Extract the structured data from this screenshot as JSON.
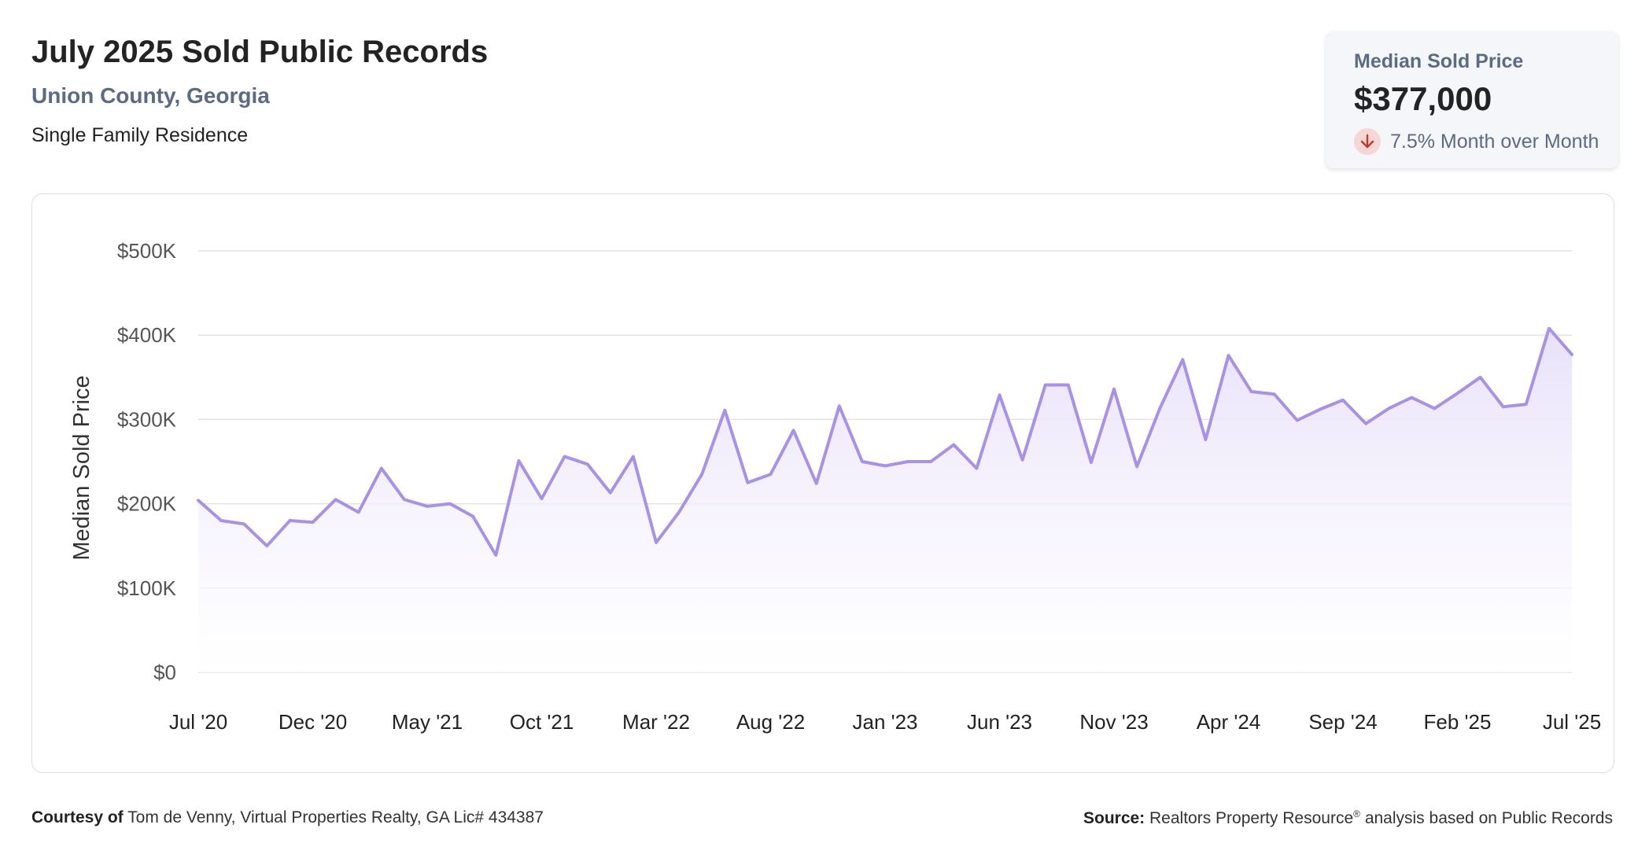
{
  "header": {
    "title": "July 2025 Sold Public Records",
    "location": "Union County, Georgia",
    "property_type": "Single Family Residence"
  },
  "stat": {
    "label": "Median Sold Price",
    "value": "$377,000",
    "change": "7.5% Month over Month",
    "direction_icon": "arrow-down-icon",
    "down_color": "#c0392b"
  },
  "footer": {
    "courtesy_label": "Courtesy of",
    "courtesy_text": "Tom de Venny, Virtual Properties Realty, GA Lic# 434387",
    "source_label": "Source:",
    "source_text_a": "Realtors Property Resource",
    "source_mark": "®",
    "source_text_b": "analysis based on Public Records"
  },
  "colors": {
    "line": "#a991e6",
    "fill": "#ece6fb",
    "grid": "#e3e3e3"
  },
  "chart_data": {
    "type": "area",
    "ylabel": "Median Sold Price",
    "ylim": [
      0,
      500000
    ],
    "yticks": [
      {
        "value": 500000,
        "label": "$500K"
      },
      {
        "value": 400000,
        "label": "$400K"
      },
      {
        "value": 300000,
        "label": "$300K"
      },
      {
        "value": 200000,
        "label": "$200K"
      },
      {
        "value": 100000,
        "label": "$100K"
      },
      {
        "value": 0,
        "label": "$0"
      }
    ],
    "xticks": [
      {
        "index": 0,
        "label": "Jul '20"
      },
      {
        "index": 5,
        "label": "Dec '20"
      },
      {
        "index": 10,
        "label": "May '21"
      },
      {
        "index": 15,
        "label": "Oct '21"
      },
      {
        "index": 20,
        "label": "Mar '22"
      },
      {
        "index": 25,
        "label": "Aug '22"
      },
      {
        "index": 30,
        "label": "Jan '23"
      },
      {
        "index": 35,
        "label": "Jun '23"
      },
      {
        "index": 40,
        "label": "Nov '23"
      },
      {
        "index": 45,
        "label": "Apr '24"
      },
      {
        "index": 50,
        "label": "Sep '24"
      },
      {
        "index": 55,
        "label": "Feb '25"
      },
      {
        "index": 60,
        "label": "Jul '25"
      }
    ],
    "grid": true,
    "series": [
      {
        "values": [
          204000,
          180000,
          176000,
          150000,
          180000,
          178000,
          205000,
          190000,
          242000,
          205000,
          197000,
          200000,
          185000,
          139000,
          251000,
          206000,
          256000,
          247000,
          213000,
          256000,
          154000,
          190000,
          235000,
          311000,
          225000,
          235000,
          287000,
          224000,
          316000,
          250000,
          245000,
          250000,
          250000,
          270000,
          242000,
          329000,
          252000,
          341000,
          341000,
          249000,
          336000,
          244000,
          313000,
          371000,
          276000,
          376000,
          333000,
          330000,
          299000,
          312000,
          323000,
          295000,
          313000,
          326000,
          313000,
          331000,
          350000,
          315000,
          318000,
          408000,
          377000
        ]
      }
    ]
  }
}
